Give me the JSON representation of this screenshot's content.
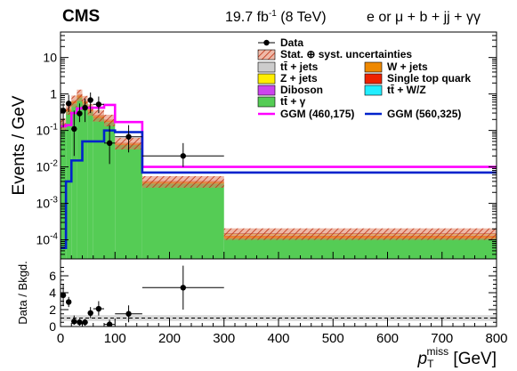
{
  "header": {
    "experiment": "CMS",
    "lumi_prefix": "19.7 fb",
    "lumi_sup": "-1",
    "lumi_suffix": " (8 TeV)",
    "channel": "e or μ + b + jj + γγ"
  },
  "chart_data": [
    {
      "type": "area",
      "ylabel": "Events / GeV",
      "yscale": "log",
      "ylim": [
        3e-05,
        50
      ],
      "xlim": [
        0,
        800
      ],
      "yticks": [
        {
          "v": 0.0001,
          "b": "10",
          "e": "-4"
        },
        {
          "v": 0.001,
          "b": "10",
          "e": "-3"
        },
        {
          "v": 0.01,
          "b": "10",
          "e": "-2"
        },
        {
          "v": 0.1,
          "b": "10",
          "e": "-1"
        },
        {
          "v": 1,
          "b": "1",
          "e": ""
        },
        {
          "v": 10,
          "b": "10",
          "e": ""
        }
      ],
      "bin_edges": [
        0,
        10,
        20,
        30,
        40,
        50,
        60,
        80,
        100,
        150,
        300,
        800
      ],
      "stack": [
        {
          "name": "tt̄ + γ",
          "color": "#55cc55",
          "values": [
            0.12,
            0.33,
            0.55,
            0.8,
            0.55,
            0.33,
            0.22,
            0.17,
            0.04,
            0.0035,
            0.00011
          ]
        },
        {
          "name": "W + jets",
          "color": "#ee8800",
          "values": [
            0.02,
            0.05,
            0.08,
            0.12,
            0.07,
            0.04,
            0.03,
            0.02,
            0.004,
            0.0004,
            2e-05
          ]
        },
        {
          "name": "tt̄ + jets",
          "color": "#cccccc",
          "values": [
            0.01,
            0.02,
            0.02,
            0.03,
            0.02,
            0.01,
            0.01,
            0.005,
            0.001,
            0.0001,
            1e-05
          ]
        },
        {
          "name": "Z + jets",
          "color": "#ffee00",
          "values": [
            0.002,
            0.004,
            0.005,
            0.005,
            0.004,
            0.002,
            0.002,
            0.001,
            0.0003,
            3e-05,
            5e-06
          ]
        },
        {
          "name": "Single top quark",
          "color": "#ee2200",
          "values": [
            0.004,
            0.008,
            0.012,
            0.015,
            0.01,
            0.007,
            0.005,
            0.003,
            0.0008,
            8e-05,
            5e-06
          ]
        },
        {
          "name": "Diboson",
          "color": "#cc44ee",
          "values": [
            0.0005,
            0.0008,
            0.001,
            0.001,
            0.0008,
            0.0005,
            0.0004,
            0.0003,
            0.0001,
            1e-05,
            1e-06
          ]
        },
        {
          "name": "tt̄ + W/Z",
          "color": "#22eeff",
          "values": [
            0.001,
            0.002,
            0.002,
            0.003,
            0.002,
            0.001,
            0.001,
            0.0008,
            0.0002,
            2e-05,
            2e-06
          ]
        }
      ],
      "uncertainty": {
        "name": "Stat. ⊕ syst. uncertainties",
        "rel": 0.35
      },
      "signals": [
        {
          "name": "GGM (460,175)",
          "color": "#ff00ff",
          "values": [
            0.13,
            0.14,
            0.3,
            0.4,
            0.42,
            0.42,
            0.42,
            0.5,
            0.17,
            0.01,
            0.01
          ]
        },
        {
          "name": "GGM (560,325)",
          "color": "#0022cc",
          "values": [
            6e-05,
            0.004,
            0.015,
            0.015,
            0.05,
            0.05,
            0.05,
            0.1,
            0.09,
            0.007,
            0.007
          ]
        }
      ],
      "data": {
        "name": "Data",
        "x": [
          5,
          15,
          25,
          35,
          45,
          55,
          70,
          90,
          125,
          225
        ],
        "y": [
          0.35,
          0.55,
          0.11,
          0.29,
          0.42,
          0.68,
          0.52,
          0.045,
          0.067,
          0.02
        ],
        "ylo": [
          0.12,
          0.32,
          0.02,
          0.17,
          0.17,
          0.3,
          0.3,
          0.012,
          0.025,
          0.01
        ],
        "yhi": [
          0.55,
          0.95,
          0.35,
          0.55,
          0.75,
          1.1,
          0.85,
          0.14,
          0.14,
          0.045
        ]
      }
    },
    {
      "type": "scatter",
      "ylabel": "Data / Bkgd.",
      "xlabel": "p",
      "xlabel_sub": "T",
      "xlabel_sup": "miss",
      "xlabel_unit": " [GeV]",
      "ylim": [
        0,
        8
      ],
      "yticks": [
        0,
        2,
        4,
        6
      ],
      "xticks": [
        0,
        100,
        200,
        300,
        400,
        500,
        600,
        700,
        800
      ],
      "unity": 1,
      "band": [
        0.65,
        1.35
      ],
      "points": {
        "x": [
          5,
          15,
          25,
          35,
          45,
          55,
          70,
          90,
          125,
          225
        ],
        "xerr": [
          5,
          5,
          5,
          5,
          5,
          5,
          10,
          10,
          25,
          75
        ],
        "y": [
          3.7,
          2.9,
          0.6,
          0.5,
          0.5,
          1.6,
          2.1,
          0.25,
          1.5,
          4.6
        ],
        "ylo": [
          2.4,
          2.3,
          0.2,
          0.1,
          0.1,
          1.0,
          1.3,
          0.0,
          0.5,
          2.0
        ],
        "yhi": [
          5.0,
          3.5,
          1.3,
          0.9,
          0.9,
          2.3,
          3.0,
          0.8,
          2.5,
          7.2
        ]
      }
    }
  ]
}
